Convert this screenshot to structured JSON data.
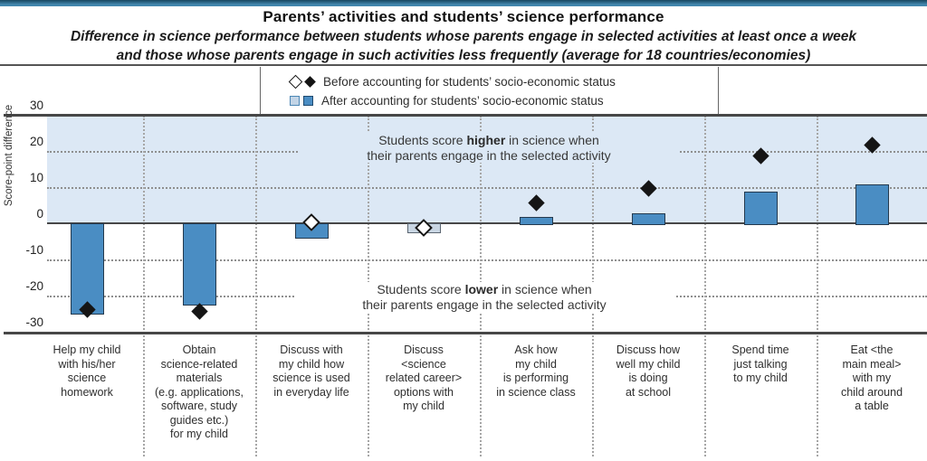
{
  "header": {
    "title": "Parents’ activities and students’ science performance",
    "subtitle": "Difference in science performance between students whose parents engage in selected activities at least once a week\nand those whose parents engage in such activities less frequently (average for 18 countries/economies)"
  },
  "legend": {
    "before_label": "Before accounting for students’ socio-economic status",
    "after_label": "After accounting for students’ socio-economic status"
  },
  "annotations": {
    "higher": {
      "pre": "Students score ",
      "bold": "higher",
      "post": " in science when",
      "line2": "their parents engage in the selected activity"
    },
    "lower": {
      "pre": "Students score ",
      "bold": "lower",
      "post": " in science when",
      "line2": "their parents engage in the selected activity"
    }
  },
  "y_axis": {
    "title": "Score-point difference"
  },
  "chart_data": {
    "type": "bar",
    "title": "Parents’ activities and students’ science performance",
    "categories": [
      "Help my child\nwith his/her\nscience\nhomework",
      "Obtain\nscience-related\nmaterials\n(e.g. applications,\nsoftware, study\nguides etc.)\nfor my child",
      "Discuss with\nmy child how\nscience is used\nin everyday life",
      "Discuss\n<science\nrelated career>\noptions with\nmy child",
      "Ask how\nmy child\nis performing\nin science class",
      "Discuss how\nwell my child\nis doing\nat school",
      "Spend time\njust talking\nto my child",
      "Eat <the\nmain meal>\nwith my\nchild around\na table"
    ],
    "series": [
      {
        "name": "Before accounting for students’ socio-economic status",
        "marker": "diamond",
        "values": [
          -23.5,
          -24,
          0.5,
          -1,
          6,
          10,
          19,
          22
        ],
        "open_markers": [
          false,
          false,
          true,
          true,
          false,
          false,
          false,
          false
        ]
      },
      {
        "name": "After accounting for students’ socio-economic status",
        "marker": "bar",
        "values": [
          -25,
          -22.5,
          -4,
          -2.5,
          2,
          3,
          9,
          11
        ],
        "light_bars": [
          false,
          false,
          false,
          true,
          false,
          false,
          false,
          false
        ]
      }
    ],
    "ylabel": "Score-point difference",
    "ylim": [
      -30,
      30
    ],
    "yticks": [
      30,
      20,
      10,
      0,
      -10,
      -20,
      -30
    ],
    "dotted_gridlines": [
      20,
      10,
      -10,
      -20
    ],
    "solid_lines": [
      30,
      0,
      -30
    ],
    "shaded_region": "0 to 30 (light blue band for positive values)",
    "legend_position": "top-center",
    "colors": {
      "bar_fill": "#4a8dc3",
      "bar_fill_nonsignificant": "#c9d6e3",
      "diamond_fill": "#151515",
      "positive_band": "#dce8f5",
      "banner": "#4286ad"
    }
  }
}
